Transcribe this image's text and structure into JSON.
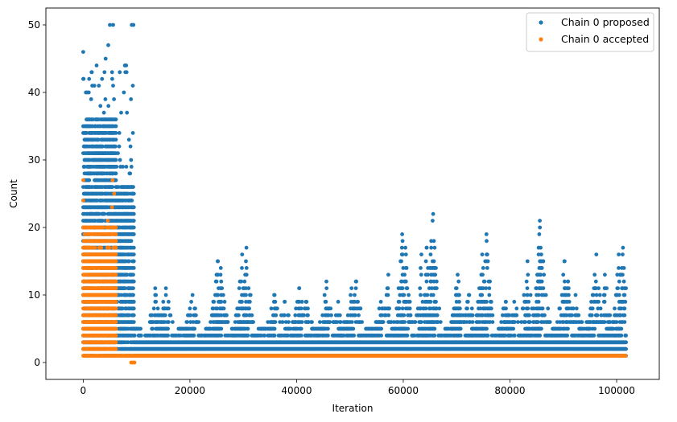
{
  "chart_data": {
    "type": "scatter",
    "xlabel": "Iteration",
    "ylabel": "Count",
    "xlim": [
      -7000,
      108000
    ],
    "ylim": [
      -2.5,
      52.5
    ],
    "x_ticks": [
      0,
      20000,
      40000,
      60000,
      80000,
      100000
    ],
    "y_ticks": [
      0,
      10,
      20,
      30,
      40,
      50
    ],
    "legend_position": "top-right",
    "grid": false,
    "colors": {
      "proposed": "#1f77b4",
      "accepted": "#ff7f0e"
    },
    "series": [
      {
        "name": "Chain 0 proposed",
        "key": "proposed",
        "phase1": {
          "x_range": [
            0,
            9500
          ],
          "y_range": [
            1,
            50
          ],
          "high_points": [
            [
              0,
              46
            ],
            [
              0,
              42
            ],
            [
              500,
              40
            ],
            [
              4200,
              45
            ],
            [
              4700,
              47
            ],
            [
              5000,
              50
            ],
            [
              5600,
              50
            ],
            [
              5400,
              43
            ],
            [
              7800,
              44
            ],
            [
              9100,
              50
            ],
            [
              9400,
              50
            ],
            [
              9300,
              41
            ]
          ]
        },
        "phase2": {
          "x_range": [
            9500,
            101800
          ],
          "baseline": 1,
          "dense_band": [
            2,
            5
          ],
          "peaks": [
            [
              10500,
              4
            ],
            [
              13500,
              11
            ],
            [
              15500,
              11
            ],
            [
              20500,
              10
            ],
            [
              25200,
              15
            ],
            [
              25800,
              14
            ],
            [
              29800,
              16
            ],
            [
              30600,
              17
            ],
            [
              33500,
              5
            ],
            [
              35800,
              10
            ],
            [
              37800,
              9
            ],
            [
              40500,
              11
            ],
            [
              41800,
              9
            ],
            [
              45600,
              12
            ],
            [
              47800,
              9
            ],
            [
              50300,
              11
            ],
            [
              51200,
              12
            ],
            [
              55800,
              9
            ],
            [
              57200,
              13
            ],
            [
              59800,
              19
            ],
            [
              60400,
              17
            ],
            [
              63400,
              16
            ],
            [
              64400,
              17
            ],
            [
              65600,
              22
            ],
            [
              65500,
              21
            ],
            [
              70200,
              13
            ],
            [
              72300,
              10
            ],
            [
              74800,
              16
            ],
            [
              75600,
              19
            ],
            [
              79200,
              9
            ],
            [
              80800,
              9
            ],
            [
              83300,
              15
            ],
            [
              85600,
              21
            ],
            [
              86200,
              15
            ],
            [
              90200,
              15
            ],
            [
              90900,
              12
            ],
            [
              92300,
              10
            ],
            [
              95500,
              10
            ],
            [
              96200,
              16
            ],
            [
              97800,
              13
            ],
            [
              100400,
              16
            ],
            [
              101200,
              17
            ]
          ]
        }
      },
      {
        "name": "Chain 0 accepted",
        "key": "accepted",
        "phase1": {
          "x_range": [
            0,
            6200
          ],
          "y_range": [
            1,
            20
          ],
          "high_points": [
            [
              0,
              27
            ],
            [
              0,
              24
            ],
            [
              5500,
              27
            ],
            [
              5800,
              25
            ],
            [
              5400,
              23
            ],
            [
              4600,
              21
            ],
            [
              2500,
              20
            ],
            [
              3200,
              20
            ]
          ]
        },
        "phase2": {
          "x_range": [
            6200,
            101800
          ],
          "baseline": 1
        },
        "zero_points": [
          [
            9000,
            0
          ],
          [
            9300,
            0
          ],
          [
            9600,
            0
          ]
        ]
      }
    ]
  }
}
